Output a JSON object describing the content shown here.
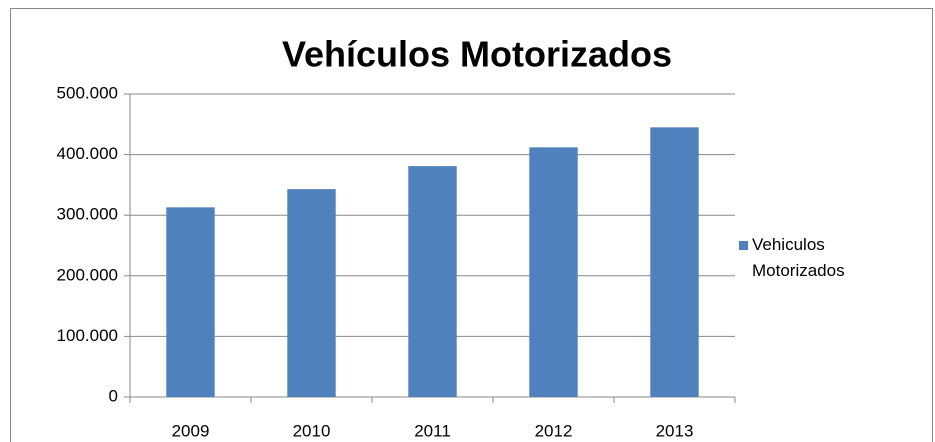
{
  "chart_data": {
    "type": "bar",
    "title": "Vehículos Motorizados",
    "categories": [
      "2009",
      "2010",
      "2011",
      "2012",
      "2013"
    ],
    "series": [
      {
        "name": "Vehiculos Motorizados",
        "color": "#4f81bd",
        "values": [
          313000,
          343000,
          381000,
          412000,
          445000
        ]
      }
    ],
    "ylim": [
      0,
      500000
    ],
    "yticks": [
      0,
      {
        "value": 100000,
        "label": "100.000"
      },
      {
        "value": 200000,
        "label": "200.000"
      },
      {
        "value": 300000,
        "label": "300.000"
      },
      {
        "value": 400000,
        "label": "400.000"
      },
      {
        "value": 500000,
        "label": "500.000"
      }
    ],
    "grid": true,
    "legend": "right"
  }
}
